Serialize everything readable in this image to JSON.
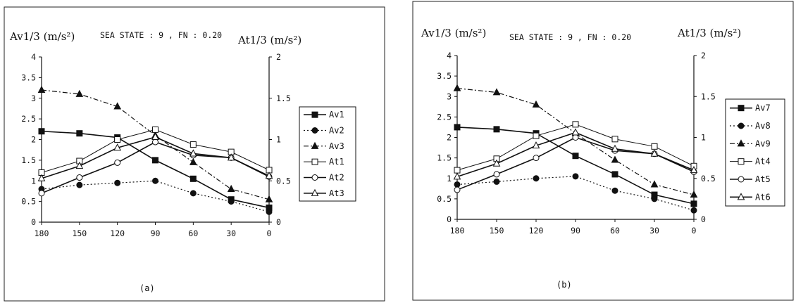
{
  "chart_data": [
    {
      "type": "line",
      "panel_label": "(a)",
      "header": "SEA STATE : 9 , FN : 0.20",
      "ylabel": "Av1/3 (m/s²)",
      "y2label": "At1/3 (m/s²)",
      "x": [
        180,
        150,
        120,
        90,
        60,
        30,
        0
      ],
      "xticks": [
        "180",
        "150",
        "120",
        "90",
        "60",
        "30",
        "0"
      ],
      "ylim": [
        0,
        4
      ],
      "yticks": [
        "0",
        "0.5",
        "1",
        "1.5",
        "2",
        "2.5",
        "3",
        "3.5",
        "4"
      ],
      "y2lim": [
        0,
        2
      ],
      "y2ticks": [
        "0",
        "0.5",
        "1",
        "1.5",
        "2"
      ],
      "legend_position": "right",
      "series": [
        {
          "name": "Av1",
          "axis": "left",
          "values": [
            2.2,
            2.15,
            2.05,
            1.5,
            1.05,
            0.55,
            0.35
          ],
          "style": "solid",
          "marker": "square-filled"
        },
        {
          "name": "Av2",
          "axis": "left",
          "values": [
            0.8,
            0.9,
            0.95,
            1.0,
            0.7,
            0.5,
            0.25
          ],
          "style": "dotted",
          "marker": "circle-filled"
        },
        {
          "name": "Av3",
          "axis": "left",
          "values": [
            3.2,
            3.1,
            2.8,
            2.1,
            1.45,
            0.8,
            0.55
          ],
          "style": "dashdot",
          "marker": "triangle-filled"
        },
        {
          "name": "At1",
          "axis": "right",
          "values": [
            0.6,
            0.74,
            1.0,
            1.12,
            0.94,
            0.85,
            0.63
          ],
          "style": "solid-thin",
          "marker": "square-open"
        },
        {
          "name": "At2",
          "axis": "right",
          "values": [
            0.35,
            0.54,
            0.72,
            0.97,
            0.81,
            0.78,
            0.55
          ],
          "style": "solid",
          "marker": "circle-open"
        },
        {
          "name": "At3",
          "axis": "right",
          "values": [
            0.53,
            0.68,
            0.9,
            1.03,
            0.83,
            0.78,
            0.56
          ],
          "style": "solid",
          "marker": "triangle-open"
        }
      ]
    },
    {
      "type": "line",
      "panel_label": "(b)",
      "header": "SEA STATE : 9 , FN : 0.20",
      "ylabel": "Av1/3 (m/s²)",
      "y2label": "At1/3 (m/s²)",
      "x": [
        180,
        150,
        120,
        90,
        60,
        30,
        0
      ],
      "xticks": [
        "180",
        "150",
        "120",
        "90",
        "60",
        "30",
        "0"
      ],
      "ylim": [
        0,
        4
      ],
      "yticks": [
        "0",
        "0.5",
        "1",
        "1.5",
        "2",
        "2.5",
        "3",
        "3.5",
        "4"
      ],
      "y2lim": [
        0,
        2
      ],
      "y2ticks": [
        "0",
        "0.5",
        "1",
        "1.5",
        "2"
      ],
      "legend_position": "right",
      "series": [
        {
          "name": "Av7",
          "axis": "left",
          "values": [
            2.25,
            2.2,
            2.1,
            1.55,
            1.1,
            0.6,
            0.38
          ],
          "style": "solid",
          "marker": "square-filled"
        },
        {
          "name": "Av8",
          "axis": "left",
          "values": [
            0.85,
            0.92,
            1.0,
            1.05,
            0.7,
            0.5,
            0.22
          ],
          "style": "dotted",
          "marker": "circle-filled"
        },
        {
          "name": "Av9",
          "axis": "left",
          "values": [
            3.2,
            3.1,
            2.8,
            2.1,
            1.45,
            0.85,
            0.6
          ],
          "style": "dashdot",
          "marker": "triangle-filled"
        },
        {
          "name": "At4",
          "axis": "right",
          "values": [
            0.6,
            0.74,
            1.02,
            1.16,
            0.98,
            0.89,
            0.65
          ],
          "style": "solid-thin",
          "marker": "square-open"
        },
        {
          "name": "At5",
          "axis": "right",
          "values": [
            0.36,
            0.55,
            0.75,
            1.0,
            0.84,
            0.8,
            0.58
          ],
          "style": "solid",
          "marker": "circle-open"
        },
        {
          "name": "At6",
          "axis": "right",
          "values": [
            0.52,
            0.68,
            0.9,
            1.06,
            0.86,
            0.8,
            0.6
          ],
          "style": "solid",
          "marker": "triangle-open"
        }
      ]
    }
  ]
}
